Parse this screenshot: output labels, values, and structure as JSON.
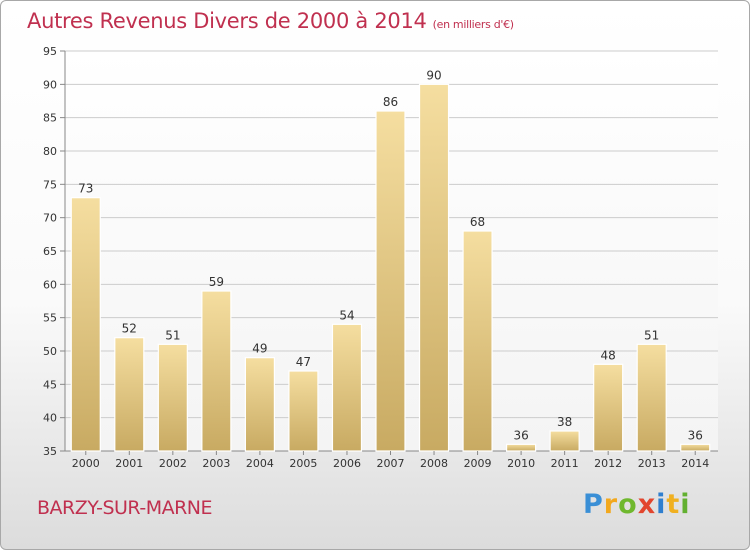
{
  "header": {
    "title": "Autres Revenus Divers de 2000 à 2014",
    "subtitle": "(en milliers d'€)"
  },
  "footer": {
    "location": "BARZY-SUR-MARNE",
    "brand": {
      "letters": [
        "P",
        "r",
        "o",
        "x",
        "i",
        "t",
        "i"
      ],
      "icon": "proxiti-logo"
    }
  },
  "colors": {
    "title": "#c0304f",
    "bar_light": "#f5dea0",
    "bar_dark": "#c8aa62",
    "grid": "#cccccc"
  },
  "chart_data": {
    "type": "bar",
    "title": "Autres Revenus Divers de 2000 à 2014",
    "subtitle": "(en milliers d'€)",
    "xlabel": "",
    "ylabel": "",
    "categories": [
      "2000",
      "2001",
      "2002",
      "2003",
      "2004",
      "2005",
      "2006",
      "2007",
      "2008",
      "2009",
      "2010",
      "2011",
      "2012",
      "2013",
      "2014"
    ],
    "values": [
      73,
      52,
      51,
      59,
      49,
      47,
      54,
      86,
      90,
      68,
      36,
      38,
      48,
      51,
      36
    ],
    "data_labels": [
      "73",
      "52",
      "51",
      "59",
      "49",
      "47",
      "54",
      "86",
      "90",
      "68",
      "36",
      "38",
      "48",
      "51",
      "36"
    ],
    "ylim": [
      35,
      95
    ],
    "yticks": [
      35,
      40,
      45,
      50,
      55,
      60,
      65,
      70,
      75,
      80,
      85,
      90,
      95
    ],
    "ytick_labels": [
      "35",
      "40",
      "45",
      "50",
      "55",
      "60",
      "65",
      "70",
      "75",
      "80",
      "85",
      "90",
      "95"
    ],
    "grid": true,
    "legend": "none"
  }
}
